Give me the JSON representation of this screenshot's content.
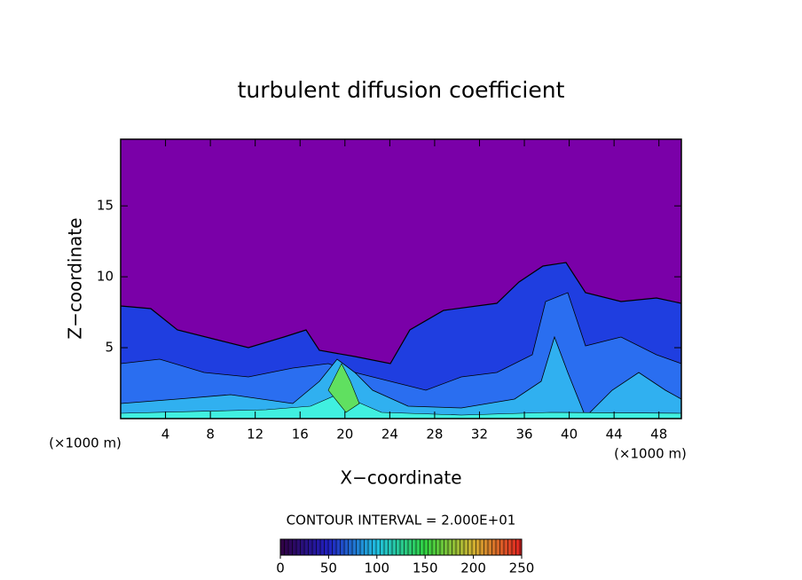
{
  "chart_data": {
    "type": "contour",
    "title": "turbulent diffusion coefficient",
    "xlabel": "X−coordinate",
    "ylabel": "Z−coordinate",
    "y_unit": "(×1000 m)",
    "x_unit": "(×1000 m)",
    "xlim": [
      0,
      50
    ],
    "ylim": [
      0,
      19.7
    ],
    "xticks": [
      4,
      8,
      12,
      16,
      20,
      24,
      28,
      32,
      36,
      40,
      44,
      48
    ],
    "yticks": [
      5,
      10,
      15
    ],
    "contour_interval_label": "CONTOUR INTERVAL = 2.000E+01",
    "colorbar": {
      "lim": [
        0,
        250
      ],
      "ticks": [
        0,
        50,
        100,
        150,
        200,
        250
      ]
    }
  }
}
